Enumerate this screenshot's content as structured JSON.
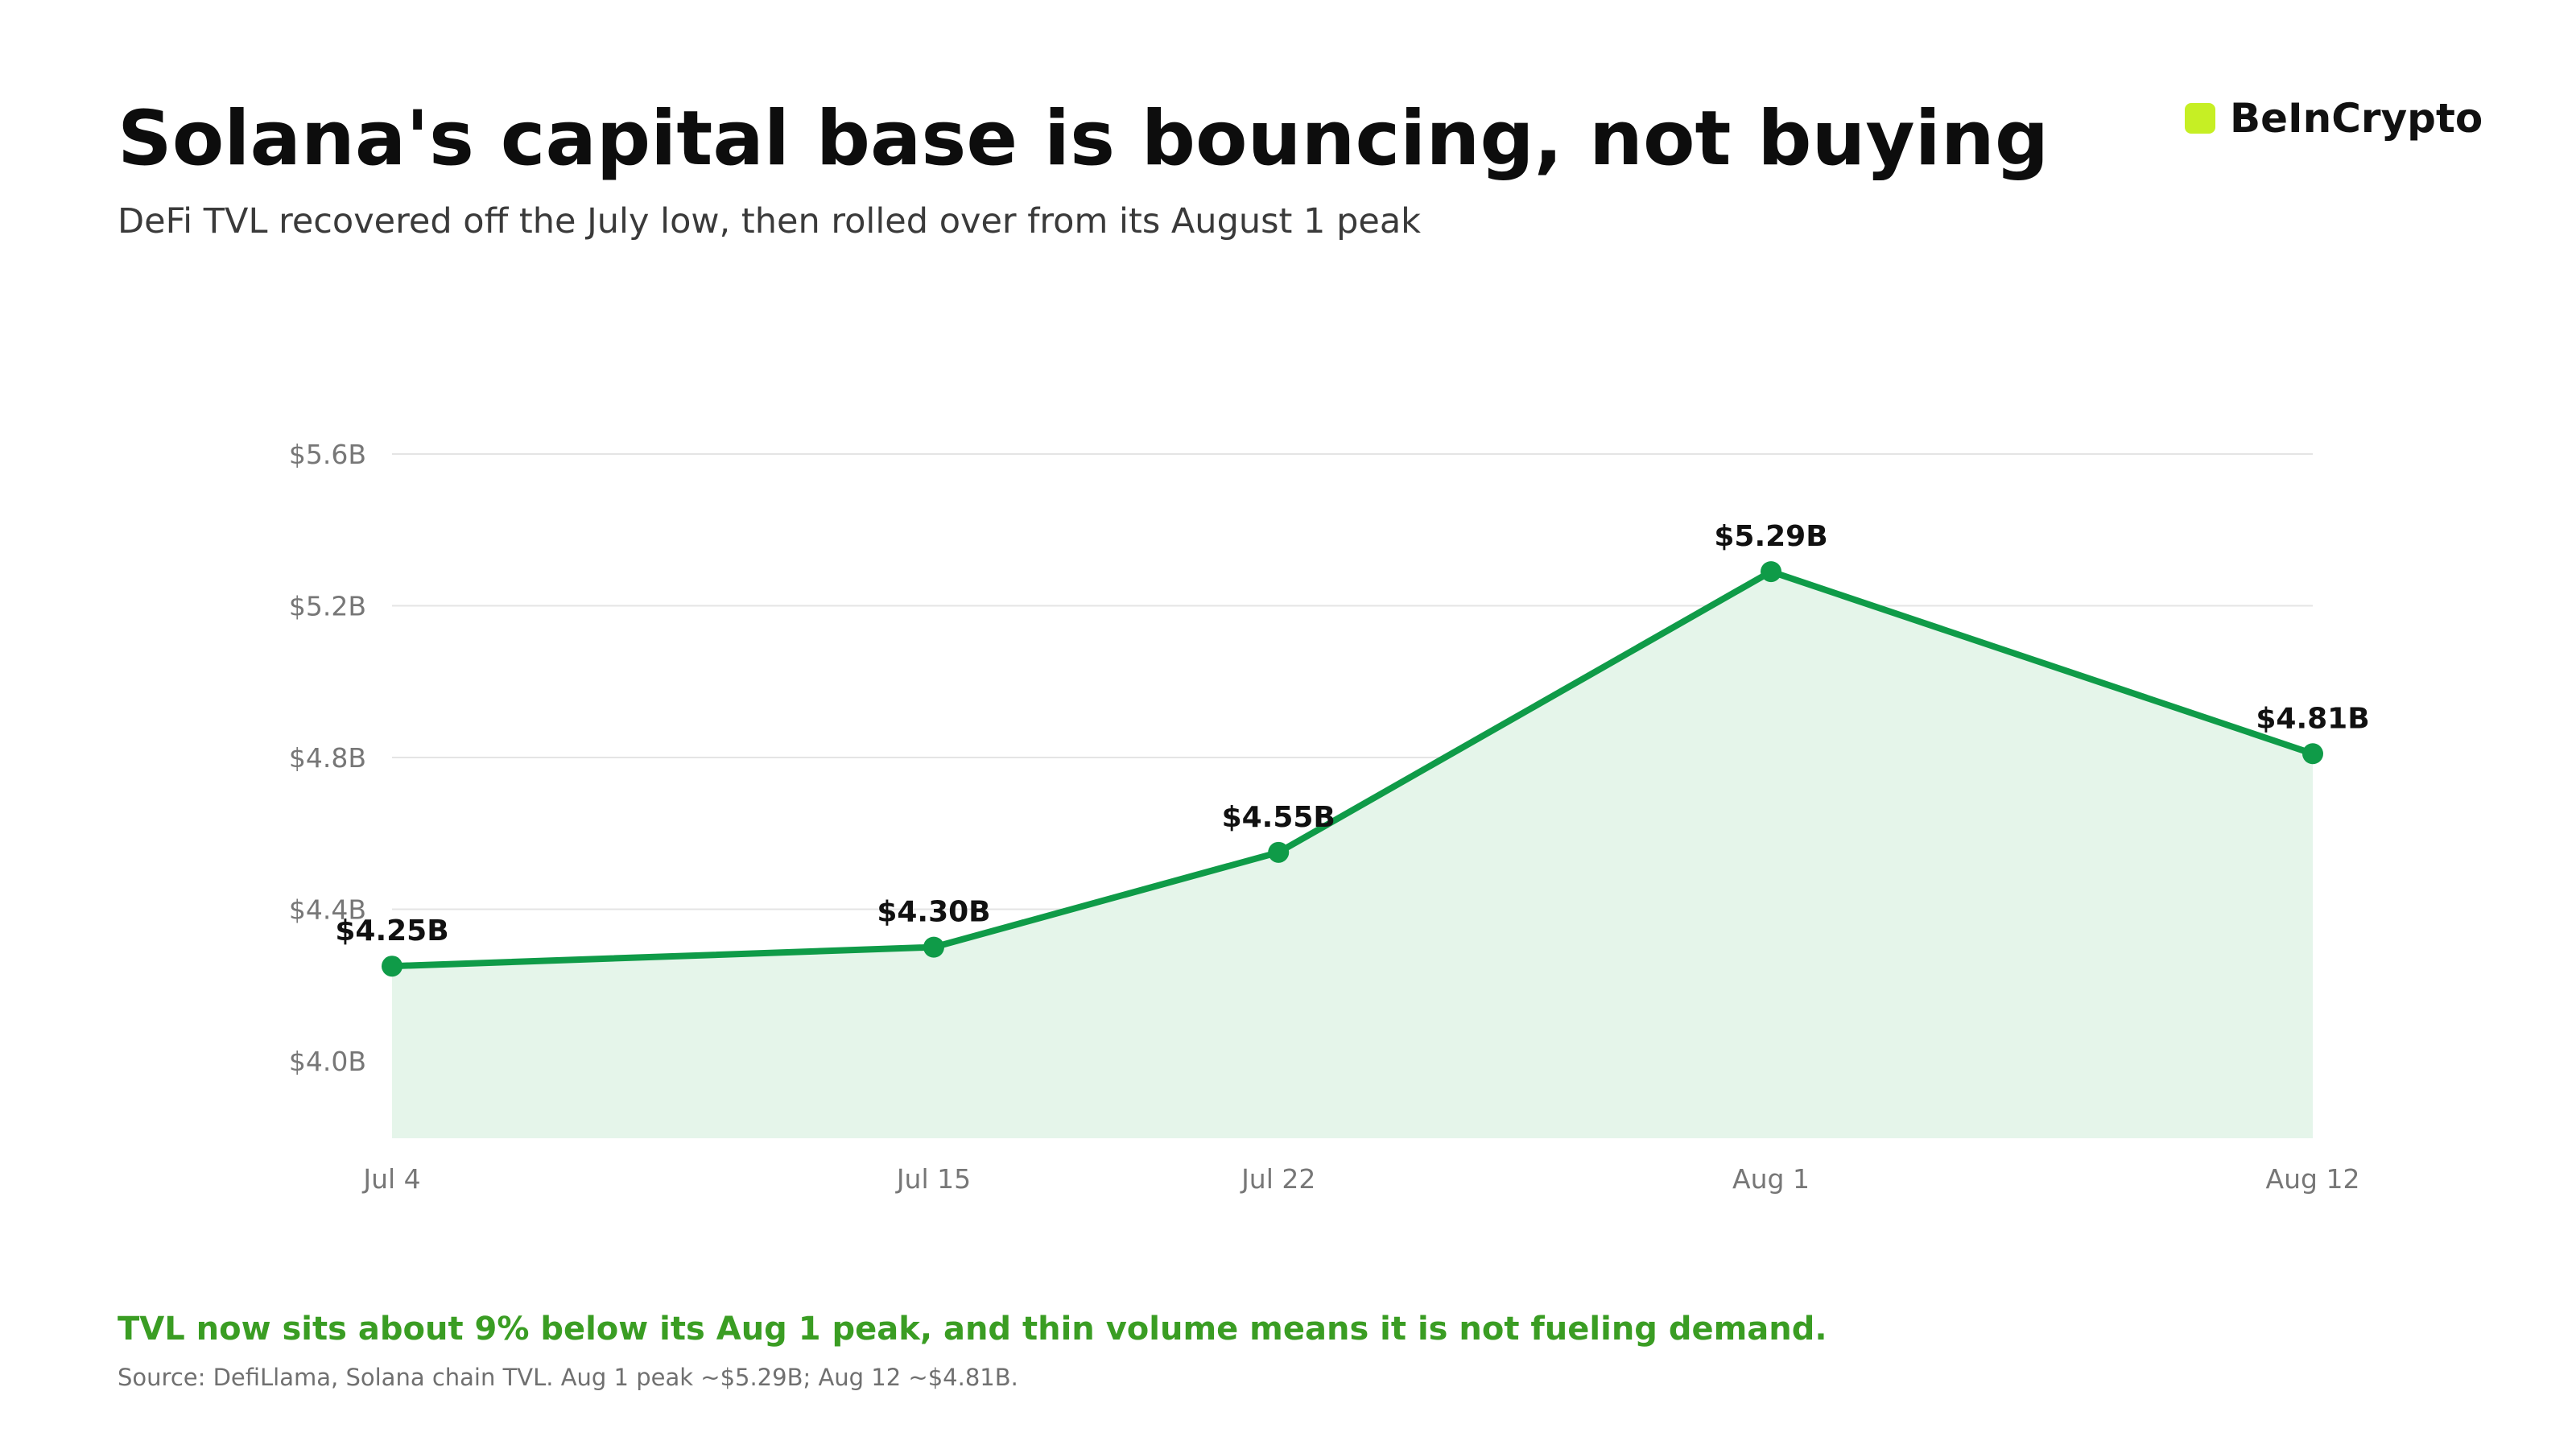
{
  "header": {
    "title": "Solana's capital base is bouncing, not buying",
    "subtitle": "DeFi TVL recovered off the July low, then rolled over from its August 1 peak"
  },
  "brand": {
    "name": "BeInCrypto",
    "mark_color": "#c6ef24"
  },
  "chart_data": {
    "type": "area",
    "x": [
      "Jul 4",
      "Jul 15",
      "Jul 22",
      "Aug 1",
      "Aug 12"
    ],
    "series": [
      {
        "values": [
          4.25,
          4.3,
          4.55,
          5.29,
          4.81
        ],
        "data_labels": [
          "$4.25B",
          "$4.30B",
          "$4.55B",
          "$5.29B",
          "$4.81B"
        ],
        "color": "#0f9b48",
        "fill_color": "#e5f5ea"
      }
    ],
    "y_ticks": [
      4.0,
      4.4,
      4.8,
      5.2,
      5.6
    ],
    "y_tick_labels": [
      "$4.0B",
      "$4.4B",
      "$4.8B",
      "$5.2B",
      "$5.6B"
    ],
    "ylim": [
      3.8,
      5.6
    ],
    "grid": true,
    "xlabel": "",
    "ylabel": ""
  },
  "footer": {
    "takeaway": "TVL now sits about 9% below its Aug 1 peak, and thin volume means it is not fueling demand.",
    "source": "Source: DefiLlama, Solana chain TVL. Aug 1 peak ~$5.29B; Aug 12 ~$4.81B."
  }
}
